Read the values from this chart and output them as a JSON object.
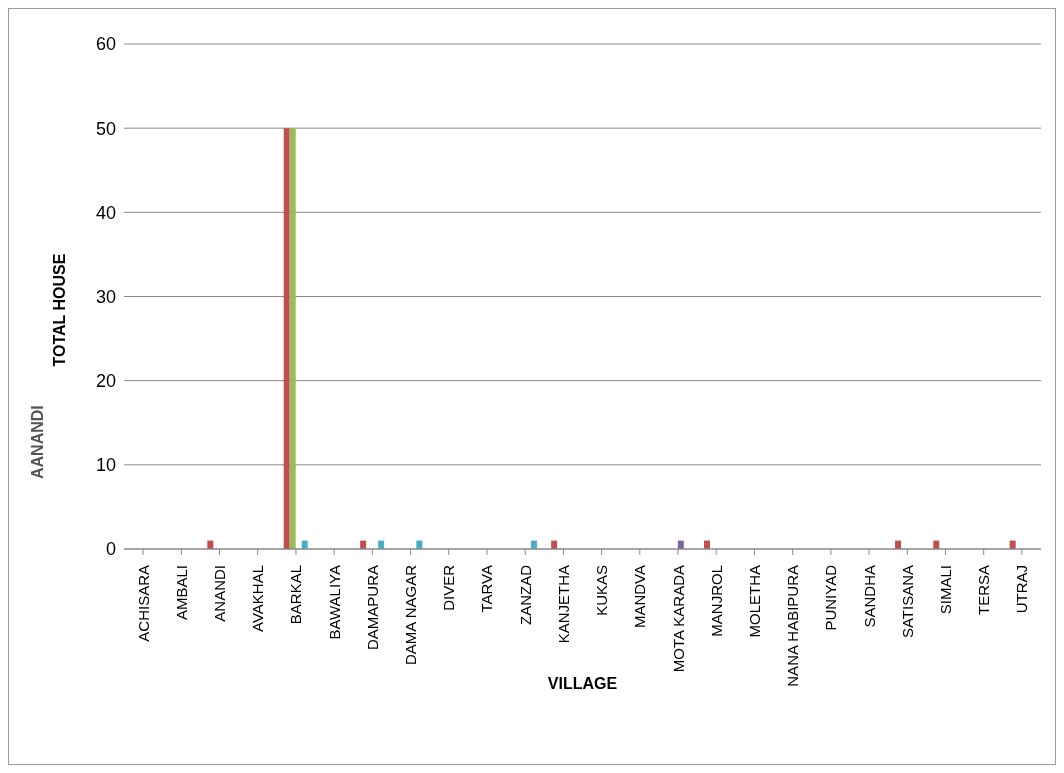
{
  "chart_data": {
    "type": "bar",
    "xlabel": "VILLAGE",
    "ylabel": "TOTAL HOUSE",
    "categories": [
      "ACHISARA",
      "AMBALI",
      "ANANDI",
      "AVAKHAL",
      "BARKAL",
      "BAWALIYA",
      "DAMAPURA",
      "DAMA NAGAR",
      "DIVER",
      "TARVA",
      "ZANZAD",
      "KANJETHA",
      "KUKAS",
      "MANDVA",
      "MOTA KARADA",
      "MANJROL",
      "MOLETHA",
      "NANA HABIPURA",
      "PUNIYAD",
      "SANDHA",
      "SATISANA",
      "SIMALI",
      "TERSA",
      "UTRAJ"
    ],
    "series": [
      {
        "color": "#c0504d",
        "values": [
          0,
          0,
          1,
          0,
          50,
          0,
          1,
          0,
          0,
          0,
          0,
          1,
          0,
          0,
          0,
          1,
          0,
          0,
          0,
          0,
          1,
          1,
          0,
          1
        ]
      },
      {
        "color": "#9bbb59",
        "values": [
          0,
          0,
          0,
          0,
          50,
          0,
          0,
          0,
          0,
          0,
          0,
          0,
          0,
          0,
          0,
          0,
          0,
          0,
          0,
          0,
          0,
          0,
          0,
          0
        ]
      },
      {
        "color": "#8064a2",
        "values": [
          0,
          0,
          0,
          0,
          0,
          0,
          0,
          0,
          0,
          0,
          0,
          0,
          0,
          0,
          1,
          0,
          0,
          0,
          0,
          0,
          0,
          0,
          0,
          0
        ]
      },
      {
        "color": "#4bacc6",
        "values": [
          0,
          0,
          0,
          0,
          1,
          0,
          1,
          1,
          0,
          0,
          1,
          0,
          0,
          0,
          0,
          0,
          0,
          0,
          0,
          0,
          0,
          0,
          0,
          0
        ]
      }
    ],
    "ylim": [
      0,
      60
    ],
    "yticks": [
      0,
      10,
      20,
      30,
      40,
      50,
      60
    ],
    "grid": "y",
    "legend": false,
    "annotations": [
      "AANANDI"
    ]
  }
}
